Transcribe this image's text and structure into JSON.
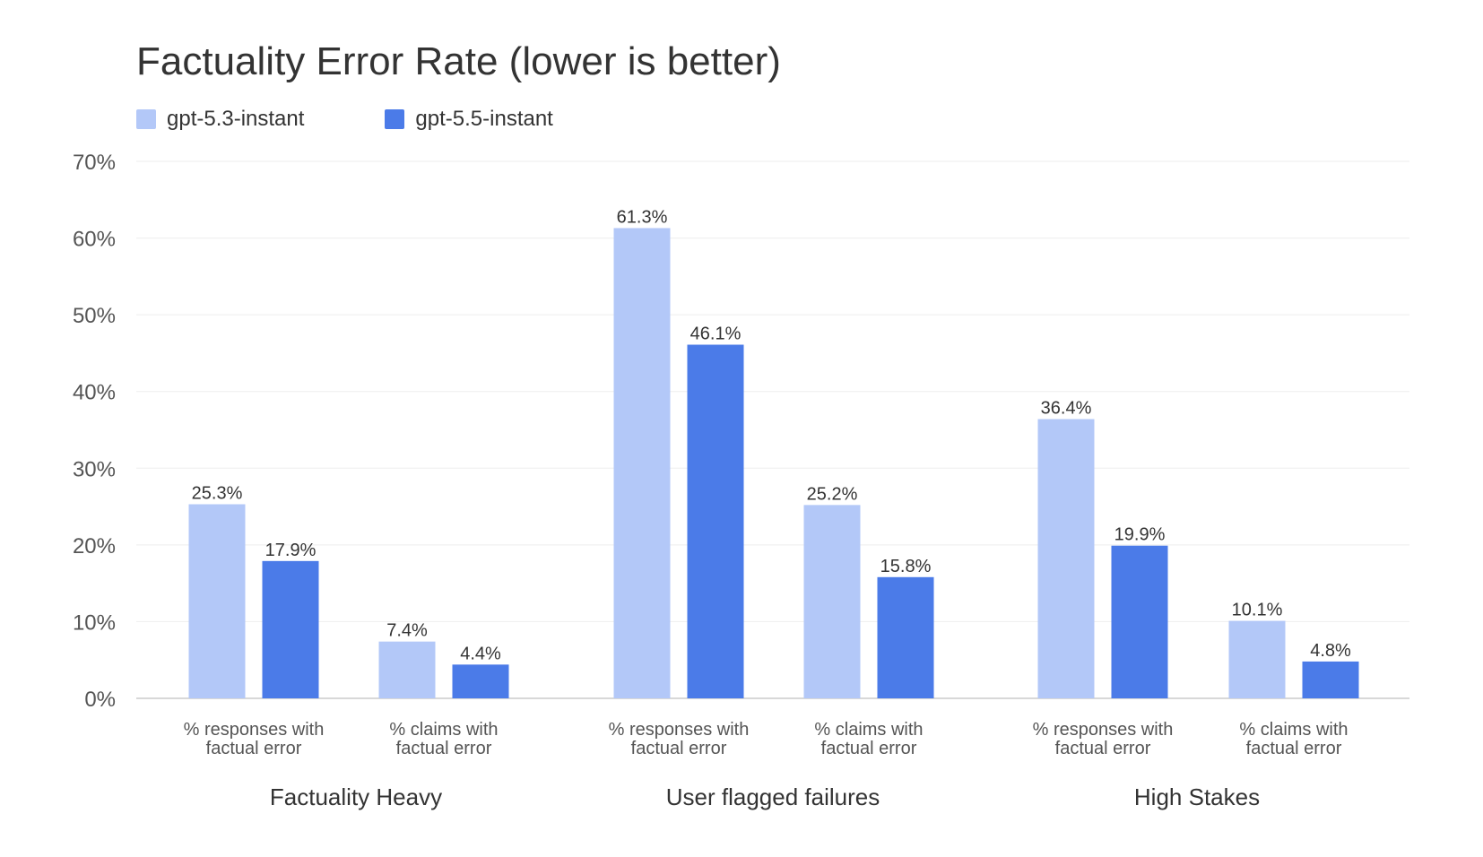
{
  "chart_data": {
    "type": "bar",
    "title": "Factuality Error Rate (lower is better)",
    "xlabel": "",
    "ylabel": "",
    "ylim": [
      0,
      70
    ],
    "yticks": [
      0,
      10,
      20,
      30,
      40,
      50,
      60,
      70
    ],
    "ytick_labels": [
      "0%",
      "10%",
      "20%",
      "30%",
      "40%",
      "50%",
      "60%",
      "70%"
    ],
    "grid": true,
    "legend_position": "top-left",
    "value_suffix": "%",
    "groups": [
      {
        "name": "Factuality Heavy",
        "categories": [
          "cat1",
          "cat2"
        ]
      },
      {
        "name": "User flagged failures",
        "categories": [
          "cat3",
          "cat4"
        ]
      },
      {
        "name": "High Stakes",
        "categories": [
          "cat5",
          "cat6"
        ]
      }
    ],
    "categories": [
      {
        "id": "cat1",
        "line1": "% responses with",
        "line2": "factual error"
      },
      {
        "id": "cat2",
        "line1": "% claims with",
        "line2": "factual error"
      },
      {
        "id": "cat3",
        "line1": "% responses with",
        "line2": "factual error"
      },
      {
        "id": "cat4",
        "line1": "% claims with",
        "line2": "factual error"
      },
      {
        "id": "cat5",
        "line1": "% responses with",
        "line2": "factual error"
      },
      {
        "id": "cat6",
        "line1": "% claims with",
        "line2": "factual error"
      }
    ],
    "series": [
      {
        "name": "gpt-5.3-instant",
        "color": "#b3c8f8",
        "values": [
          25.3,
          7.4,
          61.3,
          25.2,
          36.4,
          10.1
        ]
      },
      {
        "name": "gpt-5.5-instant",
        "color": "#4b7be8",
        "values": [
          17.9,
          4.4,
          46.1,
          15.8,
          19.9,
          4.8
        ]
      }
    ],
    "colors": {
      "grid": "#eeeeee",
      "axis": "#cccccc",
      "text": "#333333",
      "muted_text": "#555555"
    }
  }
}
